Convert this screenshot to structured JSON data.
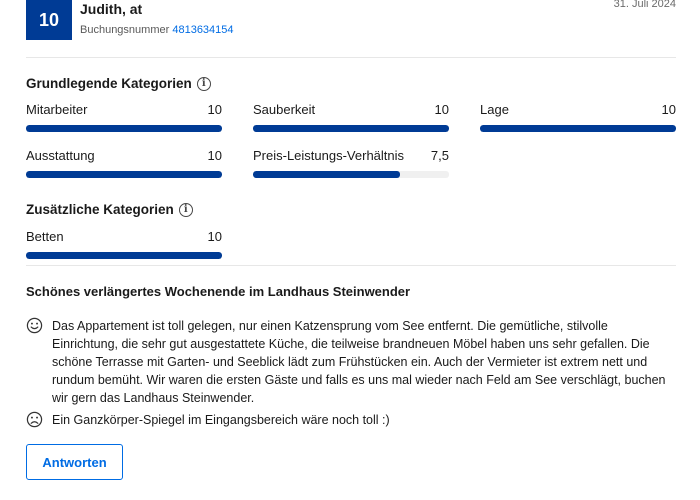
{
  "review": {
    "score": "10",
    "reviewer_name": "Judith, at",
    "booking_label": "Buchungsnummer",
    "booking_number": "4813634154",
    "date": "31. Juli 2024"
  },
  "basic_categories": {
    "heading": "Grundlegende Kategorien",
    "items": [
      {
        "label": "Mitarbeiter",
        "value": "10",
        "fraction": 1.0
      },
      {
        "label": "Sauberkeit",
        "value": "10",
        "fraction": 1.0
      },
      {
        "label": "Lage",
        "value": "10",
        "fraction": 1.0
      },
      {
        "label": "Ausstattung",
        "value": "10",
        "fraction": 1.0
      },
      {
        "label": "Preis-Leistungs-Verhältnis",
        "value": "7,5",
        "fraction": 0.75
      }
    ]
  },
  "additional_categories": {
    "heading": "Zusätzliche Kategorien",
    "items": [
      {
        "label": "Betten",
        "value": "10",
        "fraction": 1.0
      }
    ]
  },
  "review_title": "Schönes verlängertes Wochenende im Landhaus Steinwender",
  "positive_text": "Das Appartement ist toll gelegen, nur einen Katzensprung vom See entfernt. Die gemütliche, stilvolle Einrichtung, die sehr gut ausgestattete Küche, die teilweise brandneuen Möbel haben uns sehr gefallen. Die schöne Terrasse mit Garten- und Seeblick lädt zum Frühstücken ein. Auch der Vermieter ist extrem nett und rundum bemüht. Wir waren die ersten Gäste und falls es uns mal wieder nach Feld am See verschlägt, buchen wir gern das Landhaus Steinwender.",
  "negative_text": "Ein Ganzkörper-Spiegel im Eingangsbereich wäre noch toll :)",
  "reply_button": "Antworten",
  "icons": {
    "info": "info-icon",
    "positive": "smiley-happy-icon",
    "negative": "smiley-sad-icon"
  },
  "colors": {
    "accent": "#003b95",
    "link": "#006ce4"
  }
}
